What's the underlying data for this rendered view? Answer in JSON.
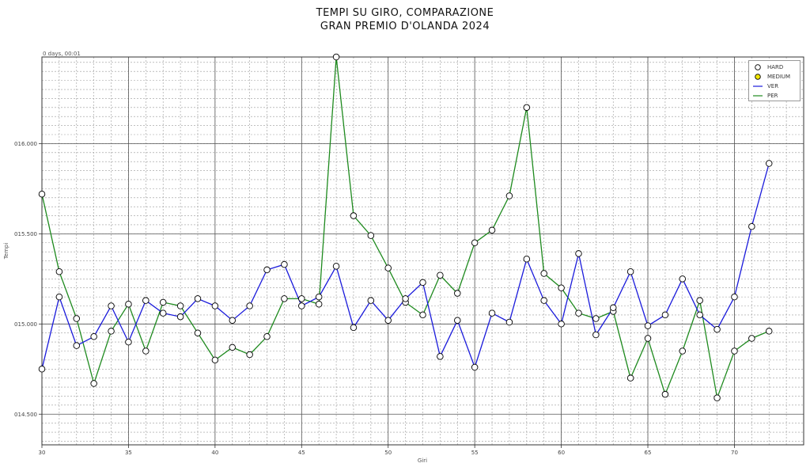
{
  "chart_data": {
    "type": "line",
    "title": "TEMPI SU GIRO, COMPARAZIONE",
    "subtitle": "GRAN PREMIO D'OLANDA 2024",
    "xlabel": "Giri",
    "ylabel": "Tempi",
    "offset_label": "0 days, 00:01",
    "xlim": [
      30,
      74
    ],
    "ylim": [
      14.33,
      16.48
    ],
    "x_ticks": [
      30,
      35,
      40,
      45,
      50,
      55,
      60,
      65,
      70
    ],
    "y_ticks": [
      {
        "value": 14.5,
        "label": "014.500"
      },
      {
        "value": 15.0,
        "label": "015.000"
      },
      {
        "value": 15.5,
        "label": "015.500"
      },
      {
        "value": 16.0,
        "label": "016.000"
      }
    ],
    "grid": true,
    "legend_position": "top-right",
    "legend": [
      {
        "label": "HARD",
        "kind": "marker",
        "color": "#ffffff"
      },
      {
        "label": "MEDIUM",
        "kind": "marker",
        "color": "#f2e600"
      },
      {
        "label": "VER",
        "kind": "line",
        "color": "#1a1adb"
      },
      {
        "label": "PER",
        "kind": "line",
        "color": "#1e8a1e"
      }
    ],
    "series": [
      {
        "name": "VER",
        "color": "#1a1adb",
        "compound": "HARD",
        "x": [
          30,
          31,
          32,
          33,
          34,
          35,
          36,
          37,
          38,
          39,
          40,
          41,
          42,
          43,
          44,
          45,
          46,
          47,
          48,
          49,
          50,
          51,
          52,
          53,
          54,
          55,
          56,
          57,
          58,
          59,
          60,
          61,
          62,
          63,
          64,
          65,
          66,
          67,
          68,
          69,
          70,
          71,
          72
        ],
        "values": [
          14.75,
          15.15,
          14.88,
          14.93,
          15.1,
          14.9,
          15.13,
          15.06,
          15.04,
          15.14,
          15.1,
          15.02,
          15.1,
          15.3,
          15.33,
          15.1,
          15.15,
          15.32,
          14.98,
          15.13,
          15.02,
          15.14,
          15.23,
          14.82,
          15.02,
          14.76,
          15.06,
          15.01,
          15.36,
          15.13,
          15.0,
          15.39,
          14.94,
          15.09,
          15.29,
          14.99,
          15.05,
          15.25,
          15.05,
          14.97,
          15.15,
          15.54,
          15.89
        ]
      },
      {
        "name": "PER",
        "color": "#1e8a1e",
        "compound": "HARD",
        "x": [
          30,
          31,
          32,
          33,
          34,
          35,
          36,
          37,
          38,
          39,
          40,
          41,
          42,
          43,
          44,
          45,
          46,
          47,
          48,
          49,
          50,
          51,
          52,
          53,
          54,
          55,
          56,
          57,
          58,
          59,
          60,
          61,
          62,
          63,
          64,
          65,
          66,
          67,
          68,
          69,
          70,
          71,
          72
        ],
        "values": [
          15.72,
          15.29,
          15.03,
          14.67,
          14.96,
          15.11,
          14.85,
          15.12,
          15.1,
          14.95,
          14.8,
          14.87,
          14.83,
          14.93,
          15.14,
          15.14,
          15.11,
          16.48,
          15.6,
          15.49,
          15.31,
          15.12,
          15.05,
          15.27,
          15.17,
          15.45,
          15.52,
          15.71,
          16.2,
          15.28,
          15.2,
          15.06,
          15.03,
          15.07,
          14.7,
          14.92,
          14.61,
          14.85,
          15.13,
          14.59,
          14.85,
          14.92,
          14.96
        ]
      }
    ]
  }
}
